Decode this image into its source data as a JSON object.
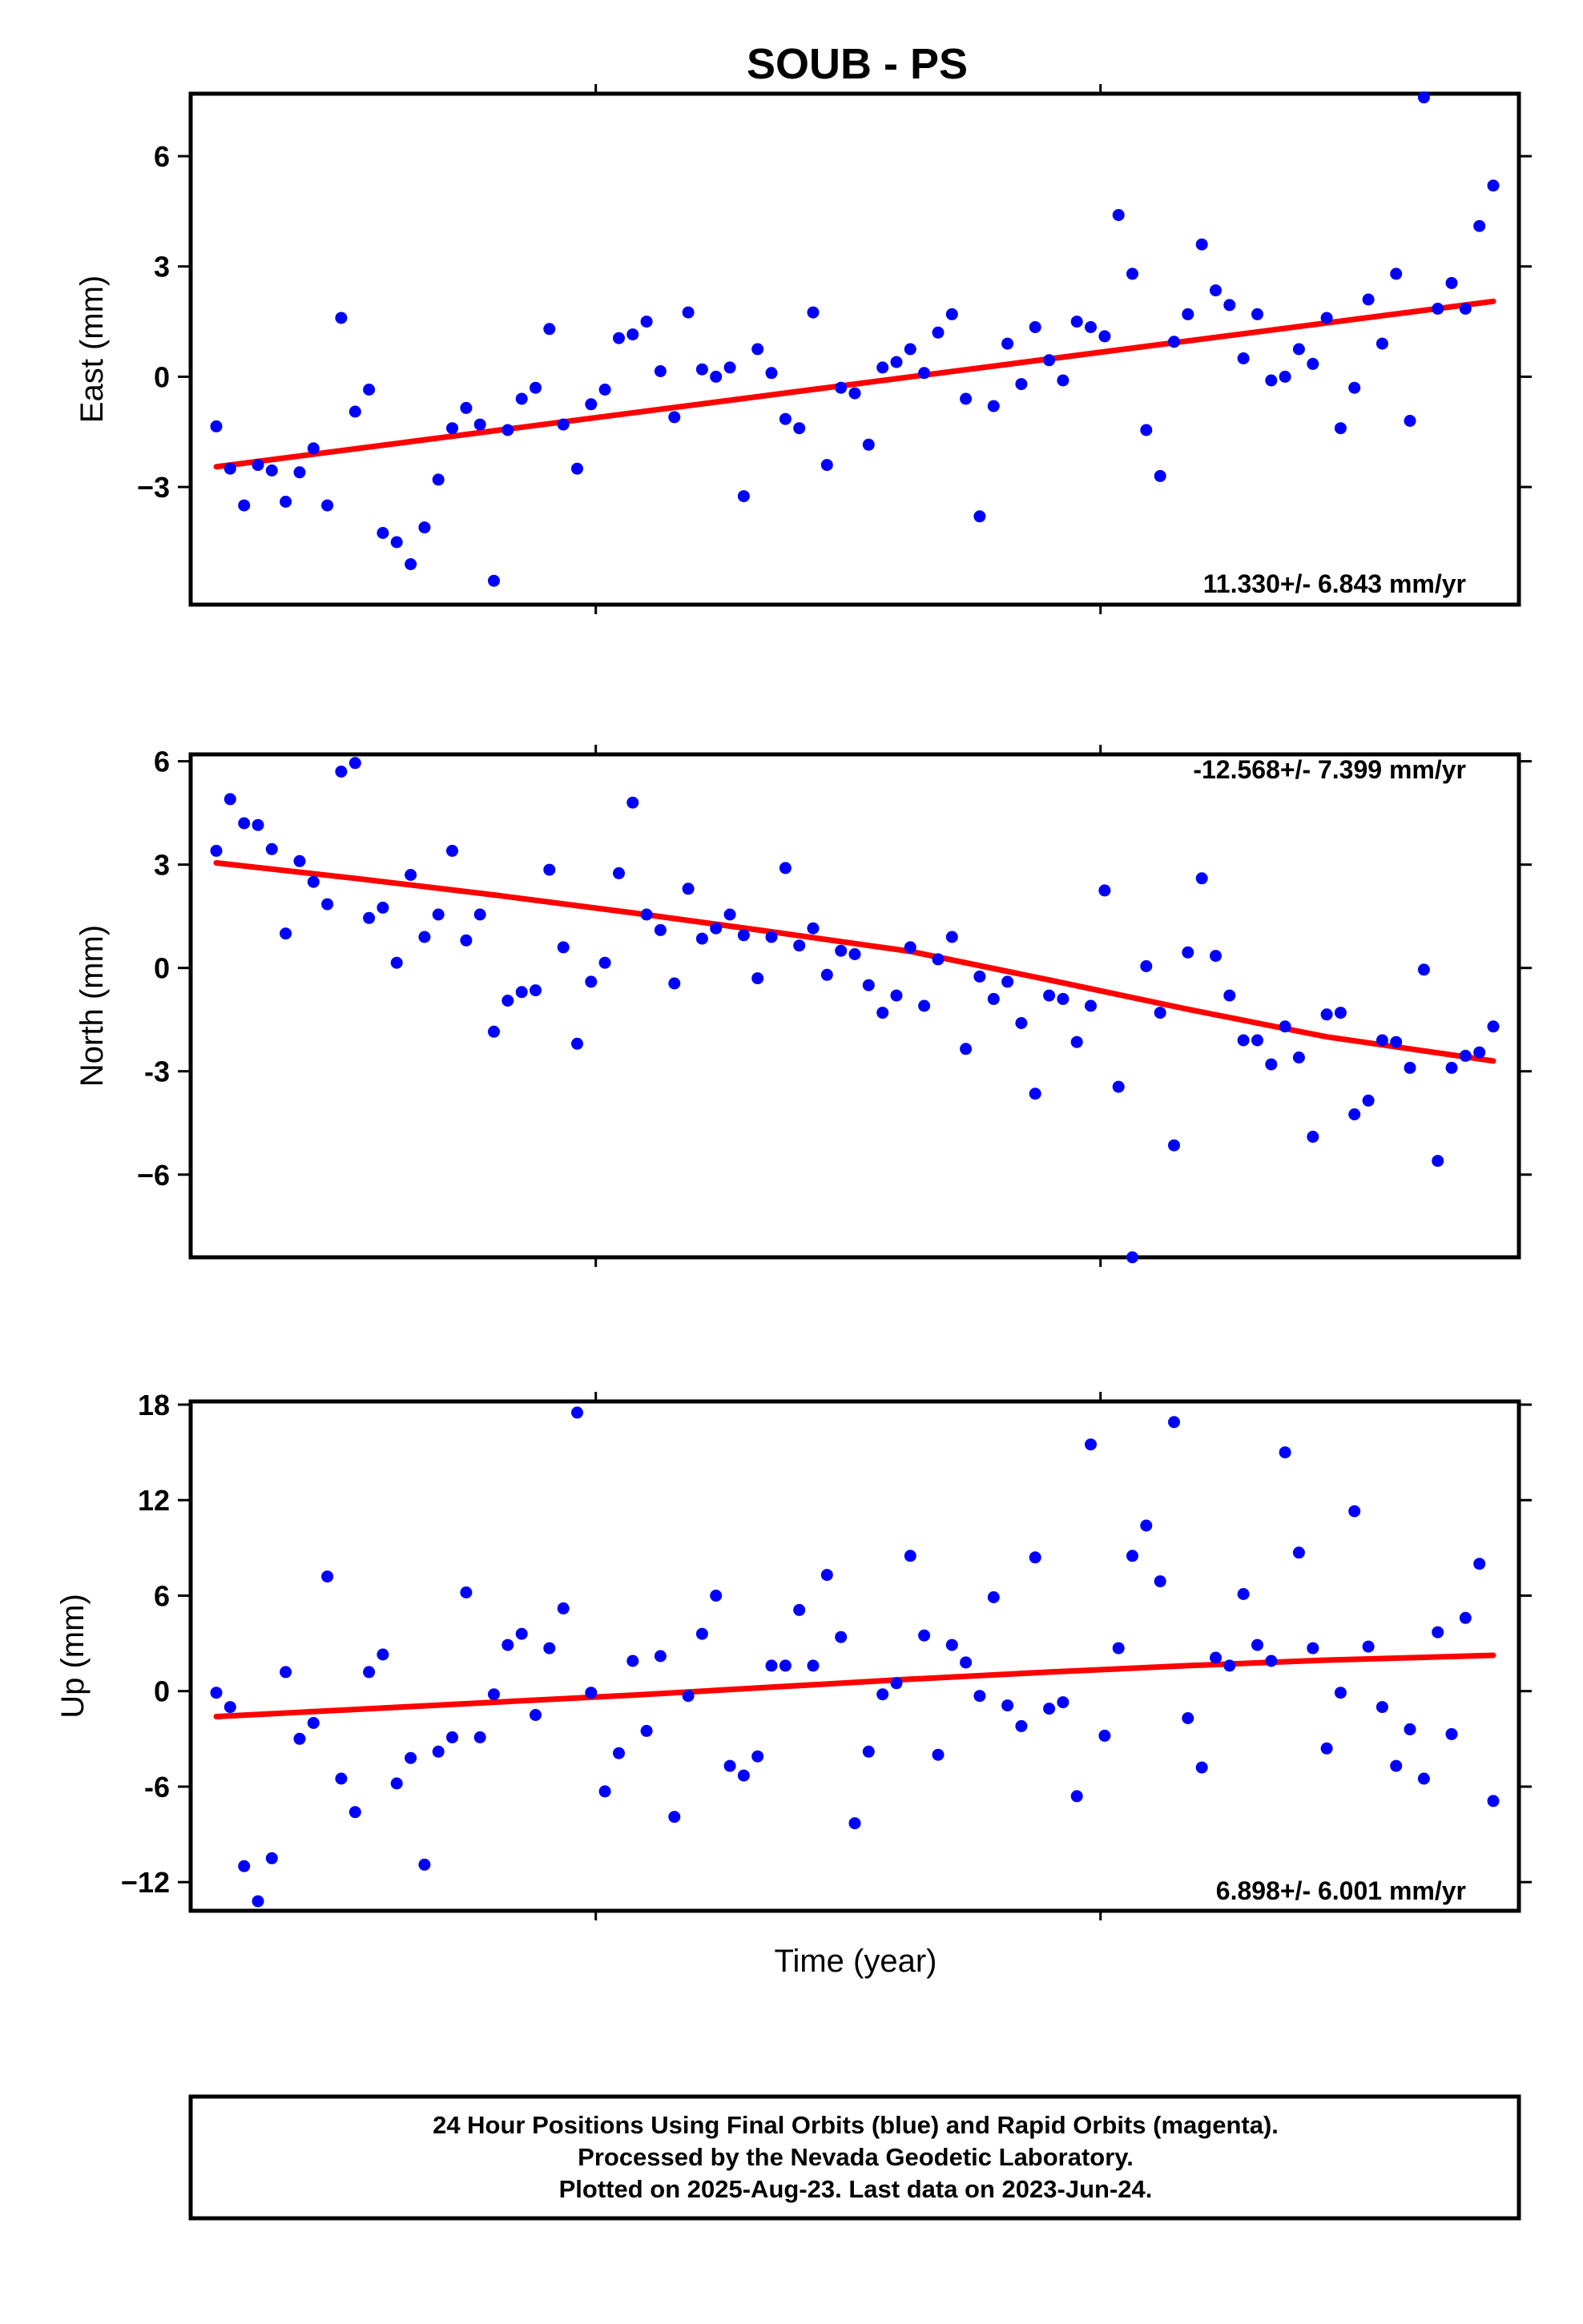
{
  "chart_data": {
    "title": "SOUB - PS",
    "xlabel": "Time (year)",
    "colors": {
      "final_orbits": "#0000ff",
      "rapid_orbits": "#ff00ff",
      "trend": "#ff0000",
      "axis": "#000000"
    },
    "panels": [
      {
        "type": "scatter",
        "ylabel": "East (mm)",
        "ylim": [
          -6.2,
          7.7
        ],
        "yticks": [
          6,
          3,
          0,
          -3
        ],
        "ytick_labels": [
          "6",
          "3",
          "0",
          "−3"
        ],
        "rate": "11.330+/- 6.843 mm/yr",
        "rate_position": "bottom-right",
        "trend": [
          [
            0,
            -2.45
          ],
          [
            92,
            2.05
          ]
        ],
        "series": [
          {
            "name": "Final Orbits",
            "x": [
              0,
              1,
              2,
              3,
              4,
              5,
              6,
              7,
              8,
              9,
              10,
              11,
              12,
              13,
              14,
              15,
              16,
              17,
              18,
              19,
              20,
              21,
              22,
              23,
              24,
              25,
              26,
              27,
              28,
              29,
              30,
              31,
              32,
              33,
              34,
              35,
              36,
              37,
              38,
              39,
              40,
              41,
              42,
              43,
              44,
              45,
              46,
              47,
              48,
              49,
              50,
              51,
              52,
              53,
              54,
              55,
              56,
              57,
              58,
              59,
              60,
              61,
              62,
              63,
              64,
              65,
              66,
              67,
              68,
              69,
              70,
              71,
              72,
              73,
              74,
              75,
              76,
              77,
              78,
              79,
              80,
              81,
              82,
              83,
              84,
              85,
              86,
              87,
              88,
              89,
              90,
              91,
              92
            ],
            "y": [
              -1.35,
              -2.5,
              -3.5,
              -2.4,
              -2.55,
              -3.4,
              -2.6,
              -1.95,
              -3.5,
              1.6,
              -0.95,
              -0.35,
              -4.25,
              -4.5,
              -5.1,
              -4.1,
              -2.8,
              -1.4,
              -0.85,
              -1.3,
              -5.55,
              -1.45,
              -0.6,
              -0.3,
              1.3,
              -1.3,
              -2.5,
              -0.75,
              -0.35,
              1.05,
              1.15,
              1.5,
              0.15,
              -1.1,
              1.75,
              0.2,
              0.0,
              0.25,
              -3.25,
              0.75,
              0.1,
              -1.15,
              -1.4,
              1.75,
              -2.4,
              -0.3,
              -0.45,
              -1.85,
              0.25,
              0.4,
              0.75,
              0.1,
              1.2,
              1.7,
              -0.6,
              -3.8,
              -0.8,
              0.9,
              -0.2,
              1.35,
              0.45,
              -0.1,
              1.5,
              1.35,
              1.1,
              4.4,
              2.8,
              -1.45,
              -2.7,
              0.95,
              1.7,
              3.6,
              2.35,
              1.95,
              0.5,
              1.7,
              -0.1,
              0.0,
              0.75,
              0.35,
              1.6,
              -1.4,
              -0.3,
              2.1,
              0.9,
              2.8,
              -1.2,
              7.6,
              1.85,
              2.55,
              1.85,
              4.1,
              5.2
            ]
          }
        ]
      },
      {
        "type": "scatter",
        "ylabel": "North (mm)",
        "ylim": [
          -8.4,
          6.2
        ],
        "yticks": [
          6,
          3,
          0,
          -3,
          -6
        ],
        "ytick_labels": [
          "6",
          "3",
          "0",
          "-3",
          "−6"
        ],
        "rate": "-12.568+/- 7.399 mm/yr",
        "rate_position": "top-right",
        "trend": [
          [
            0,
            3.05
          ],
          [
            10,
            2.6
          ],
          [
            20,
            2.12
          ],
          [
            30,
            1.6
          ],
          [
            40,
            1.05
          ],
          [
            50,
            0.48
          ],
          [
            60,
            -0.35
          ],
          [
            70,
            -1.2
          ],
          [
            80,
            -2.0
          ],
          [
            92,
            -2.7
          ]
        ],
        "series": [
          {
            "name": "Final Orbits",
            "x": [
              0,
              1,
              2,
              3,
              4,
              5,
              6,
              7,
              8,
              9,
              10,
              11,
              12,
              13,
              14,
              15,
              16,
              17,
              18,
              19,
              20,
              21,
              22,
              23,
              24,
              25,
              26,
              27,
              28,
              29,
              30,
              31,
              32,
              33,
              34,
              35,
              36,
              37,
              38,
              39,
              40,
              41,
              42,
              43,
              44,
              45,
              46,
              47,
              48,
              49,
              50,
              51,
              52,
              53,
              54,
              55,
              56,
              57,
              58,
              59,
              60,
              61,
              62,
              63,
              64,
              65,
              66,
              67,
              68,
              69,
              70,
              71,
              72,
              73,
              74,
              75,
              76,
              77,
              78,
              79,
              80,
              81,
              82,
              83,
              84,
              85,
              86,
              87,
              88,
              89,
              90,
              91,
              92
            ],
            "y": [
              3.4,
              4.9,
              4.2,
              4.15,
              3.45,
              1.0,
              3.1,
              2.5,
              1.85,
              5.7,
              5.95,
              1.45,
              1.75,
              0.15,
              2.7,
              0.9,
              1.55,
              3.4,
              0.8,
              1.55,
              -1.85,
              -0.95,
              -0.7,
              -0.65,
              2.85,
              0.6,
              -2.2,
              -0.4,
              0.15,
              2.75,
              4.8,
              1.55,
              1.1,
              -0.45,
              2.3,
              0.85,
              1.15,
              1.55,
              0.95,
              -0.3,
              0.9,
              2.9,
              0.65,
              1.15,
              -0.2,
              0.5,
              0.4,
              -0.5,
              -1.3,
              -0.8,
              0.6,
              -1.1,
              0.25,
              0.9,
              -2.35,
              -0.25,
              -0.9,
              -0.4,
              -1.6,
              -3.65,
              -0.8,
              -0.9,
              -2.15,
              -1.1,
              2.25,
              -3.45,
              -8.4,
              0.05,
              -1.3,
              -5.15,
              0.45,
              2.6,
              0.35,
              -0.8,
              -2.1,
              -2.1,
              -2.8,
              -1.7,
              -2.6,
              -4.9,
              -1.35,
              -1.3,
              -4.25,
              -3.85,
              -2.1,
              -2.15,
              -2.9,
              -0.05,
              -5.6,
              -2.9,
              -2.55,
              -2.45,
              -1.7
            ]
          }
        ]
      },
      {
        "type": "scatter",
        "ylabel": "Up (mm)",
        "ylim": [
          -13.8,
          18.2
        ],
        "yticks": [
          18,
          12,
          6,
          0,
          -6,
          -12
        ],
        "ytick_labels": [
          "18",
          "12",
          "6",
          "0",
          "-6",
          "−12"
        ],
        "rate": "6.898+/- 6.001 mm/yr",
        "rate_position": "bottom-right",
        "trend": [
          [
            0,
            -1.6
          ],
          [
            10,
            -1.15
          ],
          [
            20,
            -0.7
          ],
          [
            30,
            -0.25
          ],
          [
            40,
            0.25
          ],
          [
            50,
            0.75
          ],
          [
            60,
            1.2
          ],
          [
            70,
            1.6
          ],
          [
            80,
            1.95
          ],
          [
            92,
            2.25
          ]
        ],
        "series": [
          {
            "name": "Final Orbits",
            "x": [
              0,
              1,
              2,
              3,
              4,
              5,
              6,
              7,
              8,
              9,
              10,
              11,
              12,
              13,
              14,
              15,
              16,
              17,
              18,
              19,
              20,
              21,
              22,
              23,
              24,
              25,
              26,
              27,
              28,
              29,
              30,
              31,
              32,
              33,
              34,
              35,
              36,
              37,
              38,
              39,
              40,
              41,
              42,
              43,
              44,
              45,
              46,
              47,
              48,
              49,
              50,
              51,
              52,
              53,
              54,
              55,
              56,
              57,
              58,
              59,
              60,
              61,
              62,
              63,
              64,
              65,
              66,
              67,
              68,
              69,
              70,
              71,
              72,
              73,
              74,
              75,
              76,
              77,
              78,
              79,
              80,
              81,
              82,
              83,
              84,
              85,
              86,
              87,
              88,
              89,
              90,
              91,
              92
            ],
            "y": [
              -0.1,
              -1.0,
              -11.0,
              -13.2,
              -10.5,
              1.2,
              -3.0,
              -2.0,
              7.2,
              -5.5,
              -7.6,
              1.2,
              2.3,
              -5.8,
              -4.2,
              -10.9,
              -3.8,
              -2.9,
              6.2,
              -2.9,
              -0.2,
              2.9,
              3.6,
              -1.5,
              2.7,
              5.2,
              17.5,
              -0.1,
              -6.3,
              -3.9,
              1.9,
              -2.5,
              2.2,
              -7.9,
              -0.3,
              3.6,
              6.0,
              -4.7,
              -5.3,
              -4.1,
              1.6,
              1.6,
              5.1,
              1.6,
              7.3,
              3.4,
              -8.3,
              -3.8,
              -0.2,
              0.5,
              8.5,
              3.5,
              -4.0,
              2.9,
              1.8,
              -0.3,
              5.9,
              -0.9,
              -2.2,
              8.4,
              -1.1,
              -0.7,
              -6.6,
              15.5,
              -2.8,
              2.7,
              8.5,
              10.4,
              6.9,
              16.9,
              -1.7,
              -4.8,
              2.1,
              1.6,
              6.1,
              2.9,
              1.9,
              15.0,
              8.7,
              2.7,
              -3.6,
              -0.1,
              11.3,
              2.8,
              -1.0,
              -4.7,
              -2.4,
              -5.5,
              3.7,
              -2.7,
              4.6,
              8.0,
              -6.9
            ]
          }
        ]
      }
    ]
  },
  "footer": {
    "lines": [
      "24 Hour Positions Using Final Orbits (blue) and Rapid Orbits (magenta).",
      "Processed by the Nevada Geodetic Laboratory.",
      "Plotted on 2025-Aug-23. Last data on 2023-Jun-24."
    ]
  }
}
